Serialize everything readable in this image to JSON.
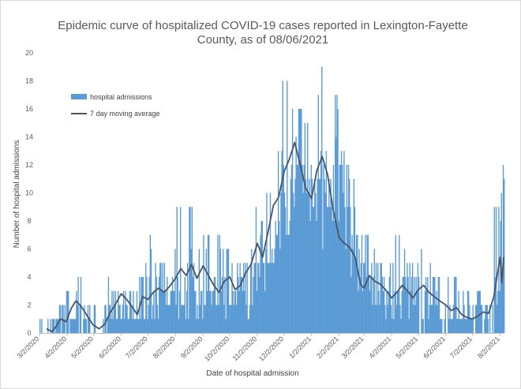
{
  "chart_data": {
    "type": "bar",
    "title_line1": "Epidemic curve of hospitalized COVID-19 cases reported in Lexington-Fayette",
    "title_line2": "County, as of 08/06/2021",
    "xlabel": "Date of hospital admission",
    "ylabel": "Number of hospital admissions",
    "ylim": [
      0,
      20
    ],
    "yticks": [
      0,
      2,
      4,
      6,
      8,
      10,
      12,
      14,
      16,
      18,
      20
    ],
    "x_range": [
      "2020-03-02",
      "2021-08-06"
    ],
    "x_tick_labels": [
      "3/2/2020",
      "4/2/2020",
      "5/2/2020",
      "6/2/2020",
      "7/2/2020",
      "8/2/2020",
      "9/2/2020",
      "10/2/2020",
      "11/2/2020",
      "12/2/2020",
      "1/2/2021",
      "2/2/2021",
      "3/2/2021",
      "4/2/2021",
      "5/2/2021",
      "6/2/2021",
      "7/2/2021",
      "8/2/2021"
    ],
    "x_tick_dates": [
      "2020-03-02",
      "2020-04-02",
      "2020-05-02",
      "2020-06-02",
      "2020-07-02",
      "2020-08-02",
      "2020-09-02",
      "2020-10-02",
      "2020-11-02",
      "2020-12-02",
      "2021-01-02",
      "2021-02-02",
      "2021-03-02",
      "2021-04-02",
      "2021-05-02",
      "2021-06-02",
      "2021-07-02",
      "2021-08-02"
    ],
    "grid": false,
    "legend_placement": "top-left",
    "series": [
      {
        "name": "hospital admissions",
        "kind": "bar",
        "color": "#5b9bd5",
        "weekly_start": "2020-03-02",
        "weekly_typical": [
          0,
          0,
          1,
          1,
          2,
          2,
          2,
          1,
          1,
          0,
          1,
          2,
          2,
          3,
          2,
          1,
          1,
          2,
          3,
          3,
          3,
          3,
          3,
          3,
          4,
          3,
          4,
          4,
          4,
          3,
          3,
          3,
          3,
          3,
          4,
          5,
          5,
          7,
          9,
          9,
          11,
          12,
          13,
          12,
          11,
          10,
          11,
          12,
          12,
          10,
          7,
          6,
          5,
          4,
          4,
          3,
          3,
          3,
          3,
          3,
          3,
          2,
          3,
          3,
          2,
          2,
          2,
          1,
          1,
          1,
          2,
          1,
          1,
          3,
          4
        ],
        "weekly_peak": [
          1,
          1,
          2,
          2,
          4,
          4,
          4,
          2,
          2,
          1,
          2,
          4,
          4,
          5,
          4,
          3,
          4,
          7,
          5,
          5,
          5,
          6,
          6,
          6,
          9,
          7,
          7,
          7,
          7,
          6,
          6,
          6,
          5,
          5,
          7,
          8,
          10,
          12,
          16,
          18,
          14,
          16,
          16,
          15,
          12,
          13,
          15,
          19,
          13,
          12,
          12,
          8,
          7,
          6,
          6,
          5,
          5,
          7,
          6,
          5,
          5,
          6,
          5,
          5,
          4,
          4,
          4,
          3,
          3,
          2,
          3,
          2,
          2,
          9,
          12
        ],
        "weekly_low": [
          0,
          0,
          0,
          0,
          0,
          0,
          0,
          0,
          0,
          0,
          0,
          0,
          1,
          1,
          1,
          0,
          0,
          0,
          1,
          1,
          1,
          1,
          1,
          1,
          2,
          1,
          1,
          2,
          2,
          1,
          1,
          1,
          1,
          1,
          2,
          3,
          3,
          4,
          5,
          6,
          7,
          8,
          9,
          8,
          7,
          6,
          7,
          8,
          8,
          6,
          4,
          3,
          3,
          2,
          2,
          1,
          1,
          1,
          1,
          1,
          1,
          0,
          1,
          1,
          0,
          0,
          0,
          0,
          0,
          0,
          1,
          0,
          0,
          1,
          1
        ]
      },
      {
        "name": "7 day moving average",
        "kind": "line",
        "color": "#44546a",
        "points": [
          [
            "2020-03-10",
            0.3
          ],
          [
            "2020-03-16",
            0.1
          ],
          [
            "2020-03-20",
            0.4
          ],
          [
            "2020-03-26",
            1.0
          ],
          [
            "2020-04-01",
            0.8
          ],
          [
            "2020-04-07",
            1.8
          ],
          [
            "2020-04-12",
            2.3
          ],
          [
            "2020-04-18",
            1.9
          ],
          [
            "2020-04-24",
            1.3
          ],
          [
            "2020-05-01",
            0.6
          ],
          [
            "2020-05-08",
            0.3
          ],
          [
            "2020-05-14",
            0.6
          ],
          [
            "2020-05-20",
            1.4
          ],
          [
            "2020-05-26",
            2.0
          ],
          [
            "2020-06-02",
            2.8
          ],
          [
            "2020-06-08",
            2.4
          ],
          [
            "2020-06-14",
            1.9
          ],
          [
            "2020-06-20",
            1.3
          ],
          [
            "2020-06-26",
            2.6
          ],
          [
            "2020-07-02",
            2.4
          ],
          [
            "2020-07-08",
            2.9
          ],
          [
            "2020-07-14",
            3.2
          ],
          [
            "2020-07-20",
            2.9
          ],
          [
            "2020-07-26",
            3.3
          ],
          [
            "2020-08-02",
            3.9
          ],
          [
            "2020-08-08",
            4.6
          ],
          [
            "2020-08-14",
            4.1
          ],
          [
            "2020-08-20",
            4.9
          ],
          [
            "2020-08-26",
            3.9
          ],
          [
            "2020-09-02",
            4.8
          ],
          [
            "2020-09-08",
            4.1
          ],
          [
            "2020-09-14",
            3.4
          ],
          [
            "2020-09-20",
            2.9
          ],
          [
            "2020-09-26",
            3.7
          ],
          [
            "2020-10-02",
            4.0
          ],
          [
            "2020-10-08",
            3.1
          ],
          [
            "2020-10-14",
            3.4
          ],
          [
            "2020-10-20",
            4.3
          ],
          [
            "2020-10-26",
            4.9
          ],
          [
            "2020-11-02",
            6.4
          ],
          [
            "2020-11-08",
            5.4
          ],
          [
            "2020-11-14",
            7.2
          ],
          [
            "2020-11-20",
            9.1
          ],
          [
            "2020-11-26",
            9.7
          ],
          [
            "2020-12-02",
            11.5
          ],
          [
            "2020-12-08",
            12.4
          ],
          [
            "2020-12-14",
            13.6
          ],
          [
            "2020-12-20",
            12.1
          ],
          [
            "2020-12-26",
            10.4
          ],
          [
            "2021-01-02",
            9.6
          ],
          [
            "2021-01-08",
            11.6
          ],
          [
            "2021-01-14",
            12.6
          ],
          [
            "2021-01-20",
            11.3
          ],
          [
            "2021-01-26",
            8.9
          ],
          [
            "2021-02-02",
            6.8
          ],
          [
            "2021-02-08",
            6.4
          ],
          [
            "2021-02-14",
            6.1
          ],
          [
            "2021-02-20",
            5.4
          ],
          [
            "2021-02-26",
            3.5
          ],
          [
            "2021-03-02",
            3.2
          ],
          [
            "2021-03-08",
            4.1
          ],
          [
            "2021-03-14",
            3.7
          ],
          [
            "2021-03-20",
            3.5
          ],
          [
            "2021-03-26",
            3.1
          ],
          [
            "2021-04-02",
            2.5
          ],
          [
            "2021-04-08",
            2.9
          ],
          [
            "2021-04-14",
            3.4
          ],
          [
            "2021-04-20",
            3.0
          ],
          [
            "2021-04-26",
            2.5
          ],
          [
            "2021-05-02",
            3.1
          ],
          [
            "2021-05-08",
            3.4
          ],
          [
            "2021-05-14",
            2.9
          ],
          [
            "2021-05-20",
            2.6
          ],
          [
            "2021-05-26",
            2.3
          ],
          [
            "2021-06-02",
            2.0
          ],
          [
            "2021-06-08",
            1.6
          ],
          [
            "2021-06-14",
            1.8
          ],
          [
            "2021-06-20",
            1.3
          ],
          [
            "2021-06-26",
            1.1
          ],
          [
            "2021-07-02",
            1.0
          ],
          [
            "2021-07-08",
            1.2
          ],
          [
            "2021-07-14",
            1.5
          ],
          [
            "2021-07-20",
            1.4
          ],
          [
            "2021-07-26",
            2.6
          ],
          [
            "2021-08-02",
            5.4
          ],
          [
            "2021-08-04",
            3.6
          ],
          [
            "2021-08-06",
            5.4
          ]
        ]
      }
    ],
    "spikes": [
      [
        "2020-11-30",
        18
      ],
      [
        "2021-01-13",
        19
      ],
      [
        "2021-01-09",
        17
      ],
      [
        "2020-12-11",
        16
      ],
      [
        "2021-08-05",
        12
      ],
      [
        "2020-08-03",
        9
      ],
      [
        "2020-08-07",
        9
      ],
      [
        "2020-10-31",
        9
      ],
      [
        "2021-07-31",
        9
      ]
    ]
  }
}
